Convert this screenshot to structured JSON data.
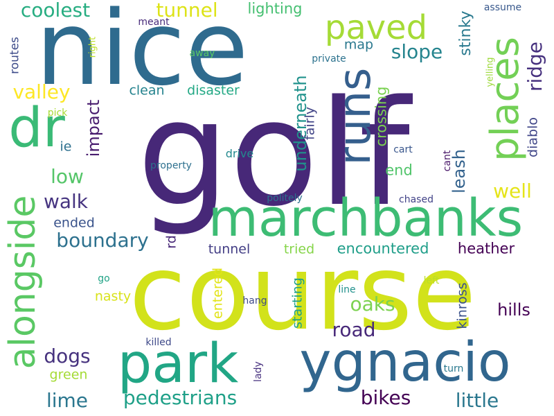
{
  "words": [
    {
      "text": "golf",
      "color": "#472878",
      "vertical": false
    },
    {
      "text": "course",
      "color": "#d2e21b",
      "vertical": false
    },
    {
      "text": "nice",
      "color": "#2f6b8e",
      "vertical": false
    },
    {
      "text": "marchbanks",
      "color": "#3dbc74",
      "vertical": false
    },
    {
      "text": "park",
      "color": "#21a685",
      "vertical": false
    },
    {
      "text": "ygnacio",
      "color": "#31668e",
      "vertical": false
    },
    {
      "text": "runs",
      "color": "#355f8d",
      "vertical": true
    },
    {
      "text": "alongside",
      "color": "#5ac864",
      "vertical": true
    },
    {
      "text": "dr",
      "color": "#3aba76",
      "vertical": false
    },
    {
      "text": "places",
      "color": "#73d056",
      "vertical": true
    },
    {
      "text": "paved",
      "color": "#a5db36",
      "vertical": false
    },
    {
      "text": "coolest",
      "color": "#27ad81",
      "vertical": false
    },
    {
      "text": "tunnel",
      "color": "#dde318",
      "vertical": false
    },
    {
      "text": "lighting",
      "color": "#44bf70",
      "vertical": false
    },
    {
      "text": "valley",
      "color": "#fde725",
      "vertical": false
    },
    {
      "text": "slope",
      "color": "#25848e",
      "vertical": false
    },
    {
      "text": "map",
      "color": "#2a788e",
      "vertical": false
    },
    {
      "text": "ridge",
      "color": "#46307e",
      "vertical": true
    },
    {
      "text": "stinky",
      "color": "#29798e",
      "vertical": true
    },
    {
      "text": "yelling",
      "color": "#9dd93b",
      "vertical": true
    },
    {
      "text": "assume",
      "color": "#38588c",
      "vertical": false
    },
    {
      "text": "meant",
      "color": "#472a7a",
      "vertical": false
    },
    {
      "text": "away",
      "color": "#5ac864",
      "vertical": false
    },
    {
      "text": "right",
      "color": "#bddf26",
      "vertical": true
    },
    {
      "text": "routes",
      "color": "#3e4c8a",
      "vertical": true
    },
    {
      "text": "private",
      "color": "#2c728e",
      "vertical": false
    },
    {
      "text": "clean",
      "color": "#25838e",
      "vertical": false
    },
    {
      "text": "disaster",
      "color": "#22a884",
      "vertical": false
    },
    {
      "text": "impact",
      "color": "#481c6e",
      "vertical": true
    },
    {
      "text": "underneath",
      "color": "#20928c",
      "vertical": true
    },
    {
      "text": "crossing",
      "color": "#7ad151",
      "vertical": true
    },
    {
      "text": "fairly",
      "color": "#414487",
      "vertical": true
    },
    {
      "text": "diablo",
      "color": "#404688",
      "vertical": true
    },
    {
      "text": "pick",
      "color": "#a8db34",
      "vertical": false
    },
    {
      "text": "ie",
      "color": "#2d708e",
      "vertical": false
    },
    {
      "text": "drive",
      "color": "#23898e",
      "vertical": false
    },
    {
      "text": "cart",
      "color": "#39568c",
      "vertical": false
    },
    {
      "text": "cant",
      "color": "#481668",
      "vertical": true
    },
    {
      "text": "low",
      "color": "#54c568",
      "vertical": false
    },
    {
      "text": "property",
      "color": "#2d708e",
      "vertical": false
    },
    {
      "text": "leash",
      "color": "#33628d",
      "vertical": true
    },
    {
      "text": "end",
      "color": "#50c46a",
      "vertical": false
    },
    {
      "text": "well",
      "color": "#e5e419",
      "vertical": false
    },
    {
      "text": "walk",
      "color": "#463480",
      "vertical": false
    },
    {
      "text": "chased",
      "color": "#414287",
      "vertical": false
    },
    {
      "text": "politely",
      "color": "#2c718e",
      "vertical": false
    },
    {
      "text": "ended",
      "color": "#3a538b",
      "vertical": false
    },
    {
      "text": "boundary",
      "color": "#2d718e",
      "vertical": false
    },
    {
      "text": "rd",
      "color": "#482878",
      "vertical": true
    },
    {
      "text": "tunnel",
      "color": "#433e85",
      "vertical": false
    },
    {
      "text": "tried",
      "color": "#86d549",
      "vertical": false
    },
    {
      "text": "encountered",
      "color": "#1f9e89",
      "vertical": false
    },
    {
      "text": "heather",
      "color": "#440154",
      "vertical": false
    },
    {
      "text": "entered",
      "color": "#e2e418",
      "vertical": true
    },
    {
      "text": "starting",
      "color": "#1fa188",
      "vertical": true
    },
    {
      "text": "oaks",
      "color": "#7cd250",
      "vertical": false
    },
    {
      "text": "kinross",
      "color": "#3b528b",
      "vertical": true
    },
    {
      "text": "go",
      "color": "#20a386",
      "vertical": false
    },
    {
      "text": "line",
      "color": "#21918c",
      "vertical": false
    },
    {
      "text": "left",
      "color": "#bade28",
      "vertical": false
    },
    {
      "text": "nasty",
      "color": "#d8e219",
      "vertical": false
    },
    {
      "text": "hang",
      "color": "#3e4a89",
      "vertical": false
    },
    {
      "text": "road",
      "color": "#482979",
      "vertical": false
    },
    {
      "text": "hills",
      "color": "#440154",
      "vertical": false
    },
    {
      "text": "killed",
      "color": "#3e4989",
      "vertical": false
    },
    {
      "text": "dogs",
      "color": "#46327e",
      "vertical": false
    },
    {
      "text": "green",
      "color": "#a5db36",
      "vertical": false
    },
    {
      "text": "lady",
      "color": "#46307e",
      "vertical": true
    },
    {
      "text": "turn",
      "color": "#29788e",
      "vertical": false
    },
    {
      "text": "lime",
      "color": "#2a768e",
      "vertical": false
    },
    {
      "text": "pedestrians",
      "color": "#1fa088",
      "vertical": false
    },
    {
      "text": "bikes",
      "color": "#440154",
      "vertical": false
    },
    {
      "text": "little",
      "color": "#2a778e",
      "vertical": false
    }
  ]
}
